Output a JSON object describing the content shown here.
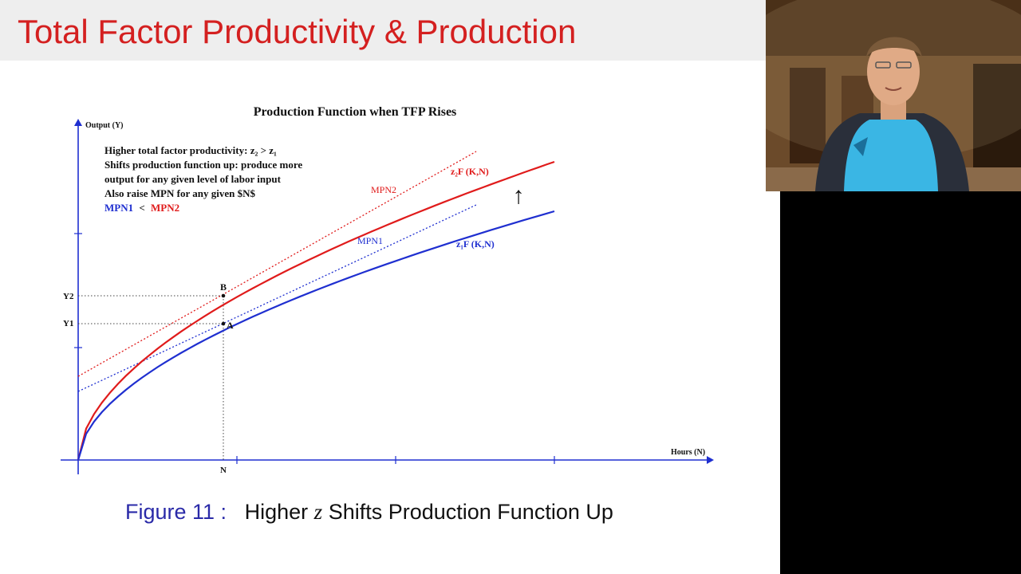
{
  "slide": {
    "title": "Total Factor Productivity & Production",
    "caption": {
      "label": "Figure 11 :",
      "text_before": "Higher",
      "variable": "z",
      "text_after": "Shifts Production Function Up"
    }
  },
  "chart_data": {
    "type": "line",
    "title": "Production Function when TFP Rises",
    "xlabel": "Hours (N)",
    "ylabel": "Output (Y)",
    "annotation_lines": [
      "Higher total factor productivity: z₂ > z₁",
      "Shifts production function up: produce more",
      "output for any given level of labor input",
      "Also raise MPN for any given $N$"
    ],
    "mp_comparison": {
      "left": "MPN1",
      "op": "<",
      "right": "MPN2"
    },
    "x_ticks": [
      "N"
    ],
    "y_ticks": [
      "Y2",
      "Y1"
    ],
    "series": [
      {
        "name": "z₂F (K,N)",
        "color": "#e01b1b",
        "style": "solid"
      },
      {
        "name": "z₁F (K,N)",
        "color": "#1f2fd0",
        "style": "solid"
      },
      {
        "name": "MPN2",
        "color": "#e01b1b",
        "style": "dotted",
        "kind": "tangent"
      },
      {
        "name": "MPN1",
        "color": "#1f2fd0",
        "style": "dotted",
        "kind": "tangent"
      }
    ],
    "points": [
      {
        "label": "B",
        "on": "z₂F (K,N)",
        "x_tick": "N",
        "y_tick": "Y2"
      },
      {
        "label": "A",
        "on": "z₁F (K,N)",
        "x_tick": "N",
        "y_tick": "Y1"
      }
    ],
    "shift_arrow": "↑"
  },
  "colors": {
    "title": "#d42020",
    "caption_label": "#2a2aa8",
    "axis": "#1f2fd0",
    "high_tfp": "#e01b1b",
    "low_tfp": "#1f2fd0",
    "title_bar": "#eeeeee"
  },
  "webcam": {
    "icon": "presenter-video-feed"
  }
}
